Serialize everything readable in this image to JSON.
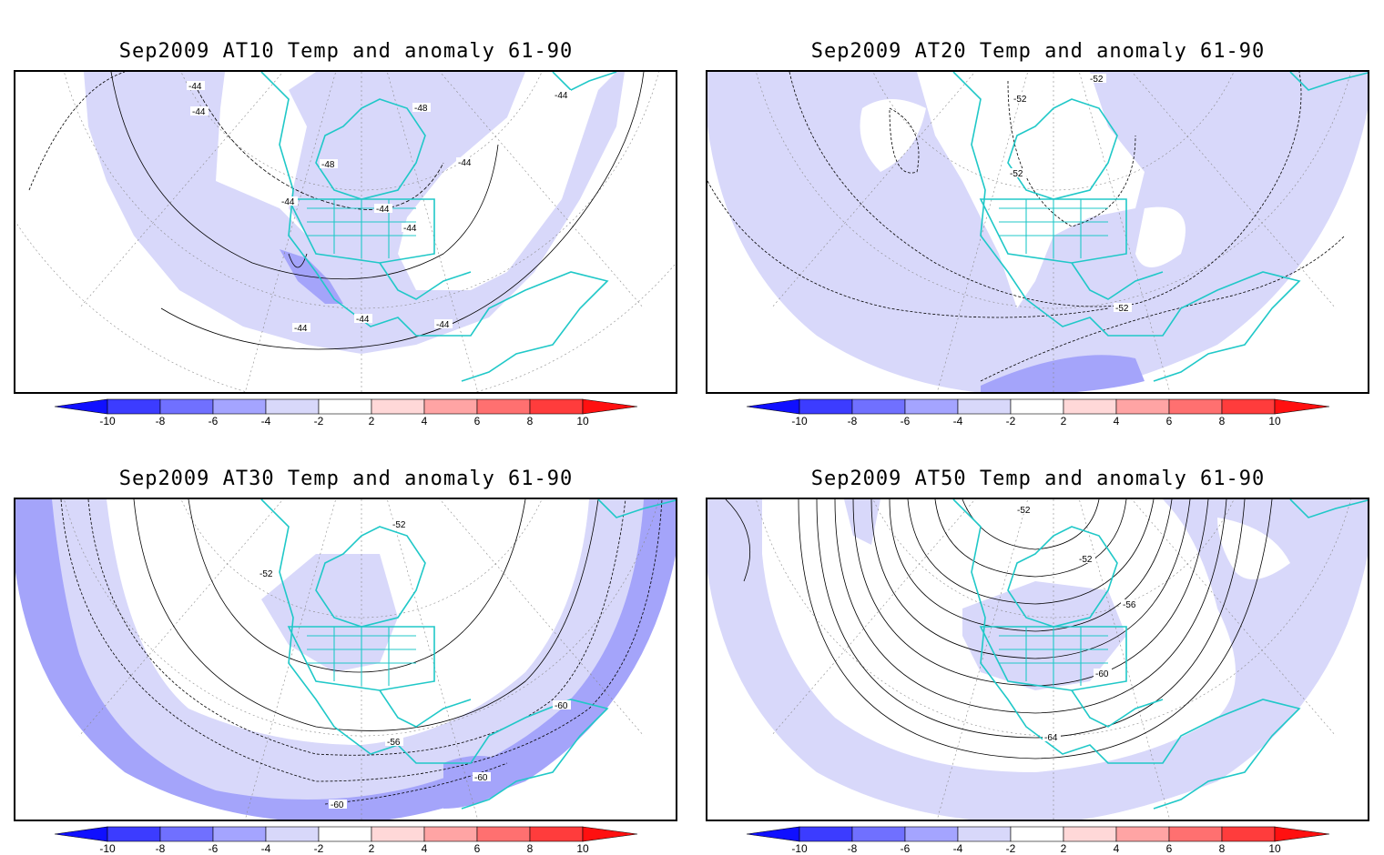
{
  "panels": [
    {
      "title": "Sep2009 AT10 Temp and anomaly 61-90",
      "contour_labels": [
        "-44",
        "-44",
        "-48",
        "-48",
        "-44",
        "-44",
        "-44",
        "-44",
        "-44",
        "-44",
        "-44",
        "-44"
      ]
    },
    {
      "title": "Sep2009 AT20 Temp and anomaly 61-90",
      "contour_labels": [
        "-52",
        "-52",
        "-52",
        "-52"
      ]
    },
    {
      "title": "Sep2009 AT30 Temp and anomaly 61-90",
      "contour_labels": [
        "-52",
        "-52",
        "-56",
        "-60",
        "-60",
        "-60"
      ]
    },
    {
      "title": "Sep2009 AT50 Temp and anomaly 61-90",
      "contour_labels": [
        "-52",
        "-52",
        "-56",
        "-60",
        "-64"
      ]
    }
  ],
  "colorbar": {
    "tick_labels": [
      "-10",
      "-8",
      "-6",
      "-4",
      "-2",
      "2",
      "4",
      "6",
      "8",
      "10"
    ],
    "colors": [
      "#1010ff",
      "#3c3cff",
      "#7070ff",
      "#a4a4ff",
      "#d8d8fa",
      "#ffffff",
      "#ffd8d8",
      "#ffa4a4",
      "#ff7070",
      "#ff3c3c",
      "#ff1010"
    ]
  },
  "map_colors": {
    "anomaly_-2_-4": "#d8d8fa",
    "anomaly_-4_-6": "#a4a4fa",
    "coastline": "#20c8c8",
    "contour": "#000000",
    "grid": "#888888"
  }
}
